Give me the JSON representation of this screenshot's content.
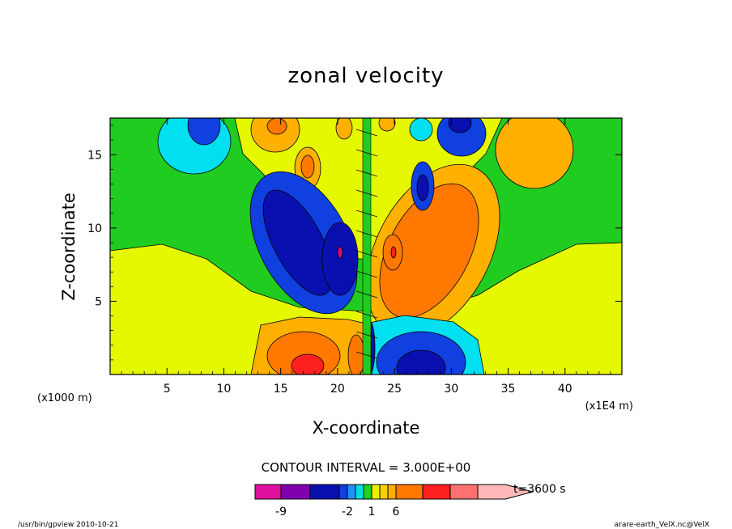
{
  "chart_data": {
    "type": "contour",
    "title": "zonal velocity",
    "xlabel": "X-coordinate",
    "ylabel": "Z-coordinate",
    "x_unit_left": "(x1000 m)",
    "x_unit_right": "(x1E4 m)",
    "xlim": [
      0,
      45
    ],
    "ylim": [
      0,
      17.5
    ],
    "x_ticks": [
      "5",
      "10",
      "15",
      "20",
      "25",
      "30",
      "35",
      "40"
    ],
    "y_ticks": [
      "5",
      "10",
      "15"
    ],
    "contour_interval_text": "CONTOUR INTERVAL = 3.000E+00",
    "colorbar": {
      "levels": [
        -9,
        -2,
        1,
        6
      ],
      "tick_labels": [
        "-9",
        "-2",
        "1",
        "6"
      ],
      "colors": [
        "#e010a0",
        "#8000b0",
        "#0a10b0",
        "#1040e0",
        "#1e90ff",
        "#00e0e0",
        "#20d020",
        "#e8f000",
        "#ffd000",
        "#ffb000",
        "#ff7800",
        "#ff2020",
        "#ff7070",
        "#ffb0b0"
      ],
      "time_label": "t=3600 s"
    },
    "field_colors": {
      "background": "#e6f800",
      "green": "#20cc20",
      "cyan": "#00e0f0",
      "blue": "#1040e0",
      "navy": "#0a10b0",
      "yellow_orange": "#ffd000",
      "amber": "#ffb000",
      "orange": "#ff7800",
      "red": "#ff2020",
      "magenta": "#d01080"
    }
  },
  "footer": {
    "left": "/usr/bin/gpview  2010-10-21",
    "right": "arare-earth_VelX.nc@VelX"
  }
}
